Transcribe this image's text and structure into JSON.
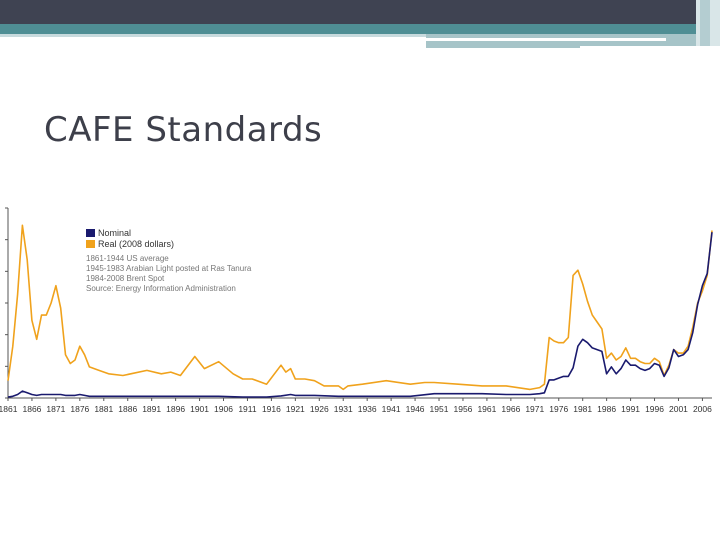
{
  "slide": {
    "title": "CAFE Standards"
  },
  "chart_data": {
    "type": "line",
    "title": "",
    "xlabel": "",
    "ylabel": "",
    "xlim": [
      1861,
      2008
    ],
    "ylim": [
      0,
      110
    ],
    "x_ticks": [
      "1861",
      "1866",
      "1871",
      "1876",
      "1881",
      "1886",
      "1891",
      "1896",
      "1901",
      "1906",
      "1911",
      "1916",
      "1921",
      "1926",
      "1931",
      "1936",
      "1941",
      "1946",
      "1951",
      "1956",
      "1961",
      "1966",
      "1971",
      "1976",
      "1981",
      "1986",
      "1991",
      "1996",
      "2001",
      "2006"
    ],
    "legend": {
      "placement": "top-left",
      "entries": [
        "Nominal",
        "Real (2008 dollars)"
      ],
      "notes": [
        "1861-1944 US average",
        "1945-1983 Arabian Light posted at Ras Tanura",
        "1984-2008 Brent Spot",
        "Source: Energy Information Administration"
      ]
    },
    "series": [
      {
        "name": "Nominal",
        "color": "#1a1a6e",
        "x": [
          1861,
          1862,
          1863,
          1864,
          1865,
          1866,
          1867,
          1868,
          1869,
          1870,
          1871,
          1872,
          1873,
          1874,
          1875,
          1876,
          1877,
          1878,
          1880,
          1885,
          1890,
          1895,
          1900,
          1905,
          1910,
          1915,
          1918,
          1920,
          1921,
          1925,
          1930,
          1935,
          1940,
          1945,
          1950,
          1955,
          1960,
          1965,
          1970,
          1972,
          1973,
          1974,
          1975,
          1976,
          1977,
          1978,
          1979,
          1980,
          1981,
          1982,
          1983,
          1984,
          1985,
          1986,
          1987,
          1988,
          1989,
          1990,
          1991,
          1992,
          1993,
          1994,
          1995,
          1996,
          1997,
          1998,
          1999,
          2000,
          2001,
          2002,
          2003,
          2004,
          2005,
          2006,
          2007,
          2008
        ],
        "values": [
          0.5,
          1.0,
          2.0,
          4.0,
          3.0,
          2.0,
          1.5,
          2.0,
          2.0,
          2.0,
          2.0,
          2.0,
          1.5,
          1.5,
          1.5,
          2.0,
          1.5,
          1.0,
          1.0,
          1.0,
          1.0,
          1.0,
          1.0,
          1.0,
          0.6,
          0.6,
          1.2,
          2.0,
          1.5,
          1.5,
          1.0,
          1.0,
          1.0,
          1.0,
          2.5,
          2.5,
          2.5,
          2.0,
          2.0,
          2.5,
          3.0,
          10.5,
          10.5,
          11.5,
          12.5,
          12.5,
          17.5,
          30.0,
          34.0,
          32.0,
          29.0,
          28.0,
          27.0,
          14.0,
          18.0,
          14.0,
          17.0,
          22.0,
          19.0,
          19.0,
          17.0,
          16.0,
          17.0,
          20.0,
          19.0,
          12.5,
          17.5,
          28.0,
          24.0,
          25.0,
          28.0,
          38.0,
          54.0,
          65.0,
          72.0,
          96.0
        ]
      },
      {
        "name": "Real (2008 dollars)",
        "color": "#f0a21c",
        "x": [
          1861,
          1862,
          1863,
          1864,
          1865,
          1866,
          1867,
          1868,
          1869,
          1870,
          1871,
          1872,
          1873,
          1874,
          1875,
          1876,
          1877,
          1878,
          1880,
          1882,
          1885,
          1890,
          1893,
          1895,
          1897,
          1900,
          1902,
          1905,
          1908,
          1910,
          1912,
          1915,
          1918,
          1919,
          1920,
          1921,
          1923,
          1925,
          1927,
          1930,
          1931,
          1932,
          1935,
          1940,
          1945,
          1948,
          1950,
          1955,
          1960,
          1965,
          1970,
          1972,
          1973,
          1974,
          1975,
          1976,
          1977,
          1978,
          1979,
          1980,
          1981,
          1982,
          1983,
          1984,
          1985,
          1986,
          1987,
          1988,
          1989,
          1990,
          1991,
          1992,
          1993,
          1994,
          1995,
          1996,
          1997,
          1998,
          1999,
          2000,
          2001,
          2002,
          2003,
          2004,
          2005,
          2006,
          2007,
          2008
        ],
        "values": [
          10,
          30,
          60,
          100,
          80,
          45,
          34,
          48,
          48,
          55,
          65,
          52,
          25,
          20,
          22,
          30,
          25,
          18,
          16,
          14,
          13,
          16,
          14,
          15,
          13,
          24,
          17,
          21,
          14,
          11,
          11,
          8,
          19,
          15,
          17,
          11,
          11,
          10,
          7,
          7,
          5,
          7,
          8,
          10,
          8,
          9,
          9,
          8,
          7,
          7,
          5,
          6,
          8,
          35,
          33,
          32,
          32,
          35,
          71,
          74,
          66,
          56,
          48,
          44,
          40,
          23,
          26,
          22,
          24,
          29,
          23,
          23,
          21,
          20,
          20,
          23,
          21,
          13,
          19,
          28,
          26,
          26,
          30,
          41,
          55,
          62,
          71,
          97
        ]
      }
    ]
  }
}
